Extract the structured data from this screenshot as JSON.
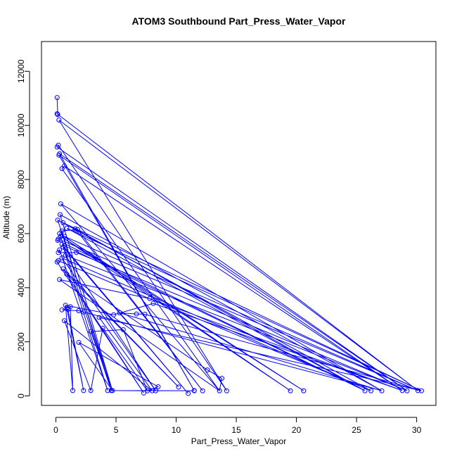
{
  "chart_data": {
    "type": "line",
    "title": "ATOM3 Southbound Part_Press_Water_Vapor",
    "xlabel": "Part_Press_Water_Vapor",
    "ylabel": "Altitude (m)",
    "xlim": [
      -1.2,
      31.6
    ],
    "ylim": [
      -350,
      13100
    ],
    "x_ticks": [
      "0",
      "5",
      "10",
      "15",
      "20",
      "25",
      "30"
    ],
    "y_ticks": [
      "0",
      "2000",
      "4000",
      "6000",
      "8000",
      "10000",
      "12000"
    ],
    "grid": false,
    "legend": "none",
    "series": [
      {
        "marker": "open-circle",
        "color": "#0000ff",
        "points": [
          [
            0.1,
            11030
          ],
          [
            0.15,
            10400
          ],
          [
            0.1,
            10430
          ],
          [
            0.25,
            10200
          ],
          [
            14.2,
            190
          ],
          [
            0.2,
            9270
          ],
          [
            0.1,
            9200
          ],
          [
            0.3,
            8950
          ],
          [
            0.25,
            8900
          ],
          [
            0.7,
            8500
          ],
          [
            0.5,
            8400
          ],
          [
            11.5,
            200
          ],
          [
            0.4,
            7100
          ],
          [
            0.35,
            6700
          ],
          [
            0.15,
            6500
          ],
          [
            0.6,
            6400
          ],
          [
            0.9,
            6200
          ],
          [
            1.6,
            6180
          ],
          [
            1.8,
            6150
          ],
          [
            0.5,
            6100
          ],
          [
            0.3,
            6000
          ],
          [
            0.4,
            5900
          ],
          [
            0.7,
            5900
          ],
          [
            0.2,
            5800
          ],
          [
            0.15,
            5750
          ],
          [
            0.5,
            5600
          ],
          [
            0.6,
            5500
          ],
          [
            0.3,
            5400
          ],
          [
            0.2,
            5300
          ],
          [
            1.7,
            5300
          ],
          [
            0.8,
            5200
          ],
          [
            0.5,
            5100
          ],
          [
            0.2,
            5000
          ],
          [
            0.1,
            4950
          ],
          [
            0.6,
            4700
          ],
          [
            0.9,
            4500
          ],
          [
            0.3,
            4300
          ],
          [
            7.8,
            3600
          ],
          [
            8.1,
            3420
          ],
          [
            0.8,
            3350
          ],
          [
            1.2,
            3300
          ],
          [
            0.9,
            3250
          ],
          [
            1.0,
            3200
          ],
          [
            0.5,
            3180
          ],
          [
            1.9,
            3150
          ],
          [
            2.3,
            3100
          ],
          [
            5.3,
            3070
          ],
          [
            4.8,
            3000
          ],
          [
            6.7,
            3030
          ],
          [
            7.4,
            3020
          ],
          [
            3.6,
            2900
          ],
          [
            0.7,
            2780
          ],
          [
            3.9,
            2500
          ],
          [
            5.6,
            2450
          ],
          [
            2.9,
            2380
          ],
          [
            1.9,
            1980
          ],
          [
            12.6,
            960
          ],
          [
            13.8,
            650
          ],
          [
            8.5,
            340
          ],
          [
            10.2,
            330
          ],
          [
            4.3,
            200
          ],
          [
            4.6,
            200
          ],
          [
            4.7,
            200
          ],
          [
            1.4,
            200
          ],
          [
            2.3,
            200
          ],
          [
            2.9,
            200
          ],
          [
            7.3,
            110
          ],
          [
            7.6,
            190
          ],
          [
            8.0,
            190
          ],
          [
            8.3,
            190
          ],
          [
            11.0,
            90
          ],
          [
            11.5,
            190
          ],
          [
            12.2,
            190
          ],
          [
            13.6,
            190
          ],
          [
            19.5,
            190
          ],
          [
            20.6,
            190
          ],
          [
            25.7,
            190
          ],
          [
            26.2,
            190
          ],
          [
            27.1,
            190
          ],
          [
            28.8,
            200
          ],
          [
            29.2,
            190
          ],
          [
            30.1,
            200
          ],
          [
            30.4,
            190
          ]
        ],
        "path": [
          [
            0.1,
            11030
          ],
          [
            0.15,
            10400
          ],
          [
            0.1,
            10430
          ],
          [
            30.1,
            200
          ],
          [
            0.25,
            10200
          ],
          [
            14.2,
            190
          ],
          [
            0.2,
            9270
          ],
          [
            0.1,
            9200
          ],
          [
            29.2,
            190
          ],
          [
            0.3,
            8950
          ],
          [
            11.5,
            200
          ],
          [
            0.25,
            8900
          ],
          [
            28.8,
            200
          ],
          [
            0.7,
            8500
          ],
          [
            0.5,
            8400
          ],
          [
            13.6,
            190
          ],
          [
            0.4,
            7100
          ],
          [
            27.1,
            190
          ],
          [
            0.35,
            6700
          ],
          [
            4.7,
            200
          ],
          [
            0.15,
            6500
          ],
          [
            26.2,
            190
          ],
          [
            0.6,
            6400
          ],
          [
            30.4,
            190
          ],
          [
            0.9,
            6200
          ],
          [
            25.7,
            190
          ],
          [
            1.6,
            6180
          ],
          [
            12.2,
            190
          ],
          [
            1.8,
            6150
          ],
          [
            0.5,
            6100
          ],
          [
            4.6,
            200
          ],
          [
            0.3,
            6000
          ],
          [
            20.6,
            190
          ],
          [
            0.4,
            5900
          ],
          [
            19.5,
            190
          ],
          [
            0.7,
            5900
          ],
          [
            30.1,
            200
          ],
          [
            0.2,
            5800
          ],
          [
            0.15,
            5750
          ],
          [
            25.7,
            190
          ],
          [
            0.5,
            5600
          ],
          [
            11.0,
            90
          ],
          [
            0.6,
            5500
          ],
          [
            4.3,
            200
          ],
          [
            0.3,
            5400
          ],
          [
            0.2,
            5300
          ],
          [
            1.7,
            5300
          ],
          [
            29.2,
            190
          ],
          [
            0.8,
            5200
          ],
          [
            8.3,
            190
          ],
          [
            0.5,
            5100
          ],
          [
            26.2,
            190
          ],
          [
            0.2,
            5000
          ],
          [
            0.1,
            4950
          ],
          [
            7.3,
            110
          ],
          [
            0.6,
            4700
          ],
          [
            10.2,
            330
          ],
          [
            0.9,
            4500
          ],
          [
            12.6,
            960
          ],
          [
            13.8,
            650
          ],
          [
            13.6,
            190
          ],
          [
            0.3,
            4300
          ],
          [
            7.8,
            3600
          ],
          [
            28.8,
            200
          ],
          [
            8.1,
            3420
          ],
          [
            4.8,
            3000
          ],
          [
            0.8,
            3350
          ],
          [
            1.4,
            200
          ],
          [
            1.2,
            3300
          ],
          [
            0.9,
            3250
          ],
          [
            2.3,
            200
          ],
          [
            1.0,
            3200
          ],
          [
            0.5,
            3180
          ],
          [
            1.9,
            3150
          ],
          [
            2.3,
            3100
          ],
          [
            27.1,
            190
          ],
          [
            5.3,
            3070
          ],
          [
            6.7,
            3030
          ],
          [
            7.4,
            3020
          ],
          [
            30.4,
            190
          ],
          [
            3.6,
            2900
          ],
          [
            8.0,
            190
          ],
          [
            0.7,
            2780
          ],
          [
            2.9,
            200
          ],
          [
            3.9,
            2500
          ],
          [
            7.6,
            190
          ],
          [
            5.6,
            2450
          ],
          [
            2.9,
            2380
          ],
          [
            4.7,
            200
          ],
          [
            1.9,
            1980
          ],
          [
            8.5,
            340
          ],
          [
            7.6,
            190
          ],
          [
            4.6,
            200
          ],
          [
            11.5,
            190
          ]
        ]
      }
    ]
  }
}
